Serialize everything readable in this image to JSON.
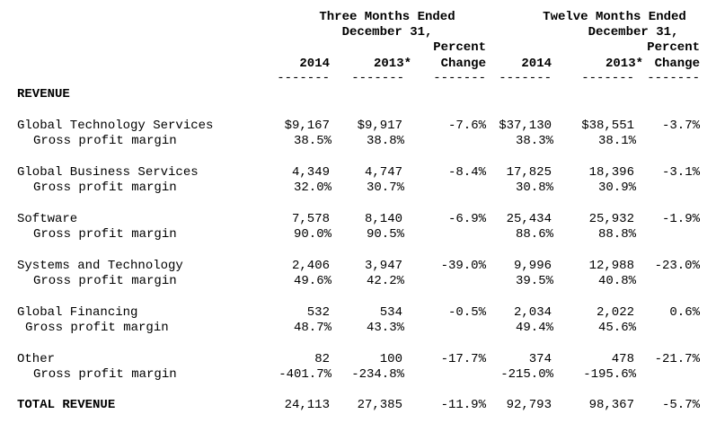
{
  "headers": {
    "three_months_line1": "Three Months Ended",
    "three_months_line2": "December 31,",
    "twelve_months_line1": "Twelve Months Ended",
    "twelve_months_line2": "December 31,",
    "percent_1": "Percent",
    "change_1": "Change",
    "percent_2": "Percent",
    "change_2": "Change",
    "col_2014_a": "2014",
    "col_2013_a": "2013*",
    "col_2014_b": "2014",
    "col_2013_b": "2013*",
    "underline": "-------"
  },
  "section_revenue": "REVENUE",
  "segments": [
    {
      "name": "Global Technology Services",
      "q2014": "$9,167",
      "q2013": "$9,917",
      "qchg": "-7.6%",
      "y2014": "$37,130",
      "y2013": "$38,551",
      "ychg": "-3.7%",
      "sub_label": "Gross profit margin",
      "m_q2014": "38.5%",
      "m_q2013": "38.8%",
      "m_y2014": "38.3%",
      "m_y2013": "38.1%"
    },
    {
      "name": "Global Business Services",
      "q2014": "4,349",
      "q2013": "4,747",
      "qchg": "-8.4%",
      "y2014": "17,825",
      "y2013": "18,396",
      "ychg": "-3.1%",
      "sub_label": "Gross profit margin",
      "m_q2014": "32.0%",
      "m_q2013": "30.7%",
      "m_y2014": "30.8%",
      "m_y2013": "30.9%"
    },
    {
      "name": "Software",
      "q2014": "7,578",
      "q2013": "8,140",
      "qchg": "-6.9%",
      "y2014": "25,434",
      "y2013": "25,932",
      "ychg": "-1.9%",
      "sub_label": "Gross profit margin",
      "m_q2014": "90.0%",
      "m_q2013": "90.5%",
      "m_y2014": "88.6%",
      "m_y2013": "88.8%"
    },
    {
      "name": "Systems and Technology",
      "q2014": "2,406",
      "q2013": "3,947",
      "qchg": "-39.0%",
      "y2014": "9,996",
      "y2013": "12,988",
      "ychg": "-23.0%",
      "sub_label": "Gross profit margin",
      "m_q2014": "49.6%",
      "m_q2013": "42.2%",
      "m_y2014": "39.5%",
      "m_y2013": "40.8%"
    },
    {
      "name": "Global Financing",
      "q2014": "532",
      "q2013": "534",
      "qchg": "-0.5%",
      "y2014": "2,034",
      "y2013": "2,022",
      "ychg": "0.6%",
      "sub_label": "Gross profit margin",
      "m_q2014": "48.7%",
      "m_q2013": "43.3%",
      "m_y2014": "49.4%",
      "m_y2013": "45.6%"
    },
    {
      "name": "Other",
      "q2014": "82",
      "q2013": "100",
      "qchg": "-17.7%",
      "y2014": "374",
      "y2013": "478",
      "ychg": "-21.7%",
      "sub_label": "Gross profit margin",
      "m_q2014": "-401.7%",
      "m_q2013": "-234.8%",
      "m_y2014": "-215.0%",
      "m_y2013": "-195.6%"
    }
  ],
  "total": {
    "label": "TOTAL REVENUE",
    "q2014": "24,113",
    "q2013": "27,385",
    "qchg": "-11.9%",
    "y2014": "92,793",
    "y2013": "98,367",
    "ychg": "-5.7%"
  }
}
